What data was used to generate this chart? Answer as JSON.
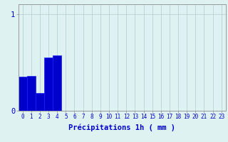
{
  "hours": [
    0,
    1,
    2,
    3,
    4,
    5,
    6,
    7,
    8,
    9,
    10,
    11,
    12,
    13,
    14,
    15,
    16,
    17,
    18,
    19,
    20,
    21,
    22,
    23
  ],
  "values": [
    0.35,
    0.36,
    0.18,
    0.55,
    0.57,
    0,
    0,
    0,
    0,
    0,
    0,
    0,
    0,
    0,
    0,
    0,
    0,
    0,
    0,
    0,
    0,
    0,
    0,
    0
  ],
  "bar_color": "#0000cc",
  "bar_edge_color": "#1a1aff",
  "bg_color": "#dff2f2",
  "grid_color": "#b0cccc",
  "axis_label_color": "#0000cc",
  "tick_label_color": "#0000cc",
  "xlabel": "Précipitations 1h ( mm )",
  "ylim": [
    0,
    1.1
  ],
  "xlim": [
    -0.5,
    23.5
  ],
  "yticks": [
    0,
    1
  ],
  "ytick_labels": [
    "0",
    "1"
  ],
  "xlabel_fontsize": 7.5,
  "tick_fontsize": 5.5,
  "ytick_fontsize": 7.5
}
